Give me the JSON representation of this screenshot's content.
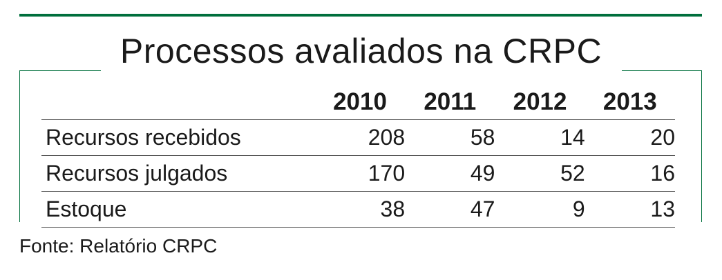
{
  "title": "Processos avaliados na CRPC",
  "source": "Fonte: Relatório CRPC",
  "colors": {
    "accent": "#006f3c",
    "text": "#1a1a1a",
    "rule": "#555555"
  },
  "chart_data": {
    "type": "table",
    "title": "Processos avaliados na CRPC",
    "columns": [
      "2010",
      "2011",
      "2012",
      "2013"
    ],
    "rows": [
      {
        "label": "Recursos recebidos",
        "values": [
          208,
          58,
          14,
          20
        ]
      },
      {
        "label": "Recursos julgados",
        "values": [
          170,
          49,
          52,
          16
        ]
      },
      {
        "label": "Estoque",
        "values": [
          38,
          47,
          9,
          13
        ]
      }
    ],
    "source": "Fonte: Relatório CRPC"
  }
}
